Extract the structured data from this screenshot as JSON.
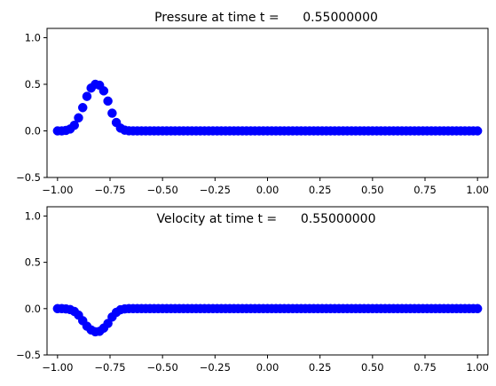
{
  "chart_data": [
    {
      "type": "scatter",
      "title": "Pressure at time t =      0.55000000",
      "xlabel": "",
      "ylabel": "",
      "xlim": [
        -1.05,
        1.05
      ],
      "ylim": [
        -0.5,
        1.1
      ],
      "xticks": [
        -1.0,
        -0.75,
        -0.5,
        -0.25,
        0.0,
        0.25,
        0.5,
        0.75,
        1.0
      ],
      "xtick_labels": [
        "−1.00",
        "−0.75",
        "−0.50",
        "−0.25",
        "0.00",
        "0.25",
        "0.50",
        "0.75",
        "1.00"
      ],
      "yticks": [
        -0.5,
        0.0,
        0.5,
        1.0
      ],
      "ytick_labels": [
        "−0.5",
        "0.0",
        "0.5",
        "1.0"
      ],
      "grid": false,
      "marker_color": "#0000ff",
      "series": [
        {
          "x": [
            -1.0,
            -0.98,
            -0.96,
            -0.94,
            -0.92,
            -0.9,
            -0.88,
            -0.86,
            -0.84,
            -0.82,
            -0.8,
            -0.78,
            -0.76,
            -0.74,
            -0.72,
            -0.7,
            -0.68,
            -0.66,
            -0.64,
            -0.62,
            -0.6,
            -0.58,
            -0.56,
            -0.54,
            -0.52,
            -0.5,
            -0.48,
            -0.46,
            -0.44,
            -0.42,
            -0.4,
            -0.38,
            -0.36,
            -0.34,
            -0.32,
            -0.3,
            -0.28,
            -0.26,
            -0.24,
            -0.22,
            -0.2,
            -0.18,
            -0.16,
            -0.14,
            -0.12,
            -0.1,
            -0.08,
            -0.06,
            -0.04,
            -0.02,
            0.0,
            0.02,
            0.04,
            0.06,
            0.08,
            0.1,
            0.12,
            0.14,
            0.16,
            0.18,
            0.2,
            0.22,
            0.24,
            0.26,
            0.28,
            0.3,
            0.32,
            0.34,
            0.36,
            0.38,
            0.4,
            0.42,
            0.44,
            0.46,
            0.48,
            0.5,
            0.52,
            0.54,
            0.56,
            0.58,
            0.6,
            0.62,
            0.64,
            0.66,
            0.68,
            0.7,
            0.72,
            0.74,
            0.76,
            0.78,
            0.8,
            0.82,
            0.84,
            0.86,
            0.88,
            0.9,
            0.92,
            0.94,
            0.96,
            0.98,
            1.0
          ],
          "y": [
            0.0,
            0.0,
            0.005,
            0.02,
            0.06,
            0.14,
            0.25,
            0.37,
            0.46,
            0.5,
            0.49,
            0.43,
            0.32,
            0.19,
            0.09,
            0.03,
            0.008,
            0.001,
            0.0,
            0.0,
            0.0,
            0.0,
            0.0,
            0.0,
            0.0,
            0.0,
            0.0,
            0.0,
            0.0,
            0.0,
            0.0,
            0.0,
            0.0,
            0.0,
            0.0,
            0.0,
            0.0,
            0.0,
            0.0,
            0.0,
            0.0,
            0.0,
            0.0,
            0.0,
            0.0,
            0.0,
            0.0,
            0.0,
            0.0,
            0.0,
            0.0,
            0.0,
            0.0,
            0.0,
            0.0,
            0.0,
            0.0,
            0.0,
            0.0,
            0.0,
            0.0,
            0.0,
            0.0,
            0.0,
            0.0,
            0.0,
            0.0,
            0.0,
            0.0,
            0.0,
            0.0,
            0.0,
            0.0,
            0.0,
            0.0,
            0.0,
            0.0,
            0.0,
            0.0,
            0.0,
            0.0,
            0.0,
            0.0,
            0.0,
            0.0,
            0.0,
            0.0,
            0.0,
            0.0,
            0.0,
            0.0,
            0.0,
            0.0,
            0.0,
            0.0,
            0.0,
            0.0,
            0.0,
            0.0,
            0.0,
            0.0
          ]
        }
      ]
    },
    {
      "type": "scatter",
      "title": "Velocity at time t =      0.55000000",
      "xlabel": "",
      "ylabel": "",
      "xlim": [
        -1.05,
        1.05
      ],
      "ylim": [
        -0.5,
        1.1
      ],
      "xticks": [
        -1.0,
        -0.75,
        -0.5,
        -0.25,
        0.0,
        0.25,
        0.5,
        0.75,
        1.0
      ],
      "xtick_labels": [
        "−1.00",
        "−0.75",
        "−0.50",
        "−0.25",
        "0.00",
        "0.25",
        "0.50",
        "0.75",
        "1.00"
      ],
      "yticks": [
        -0.5,
        0.0,
        0.5,
        1.0
      ],
      "ytick_labels": [
        "−0.5",
        "0.0",
        "0.5",
        "1.0"
      ],
      "grid": false,
      "marker_color": "#0000ff",
      "series": [
        {
          "x": [
            -1.0,
            -0.98,
            -0.96,
            -0.94,
            -0.92,
            -0.9,
            -0.88,
            -0.86,
            -0.84,
            -0.82,
            -0.8,
            -0.78,
            -0.76,
            -0.74,
            -0.72,
            -0.7,
            -0.68,
            -0.66,
            -0.64,
            -0.62,
            -0.6,
            -0.58,
            -0.56,
            -0.54,
            -0.52,
            -0.5,
            -0.48,
            -0.46,
            -0.44,
            -0.42,
            -0.4,
            -0.38,
            -0.36,
            -0.34,
            -0.32,
            -0.3,
            -0.28,
            -0.26,
            -0.24,
            -0.22,
            -0.2,
            -0.18,
            -0.16,
            -0.14,
            -0.12,
            -0.1,
            -0.08,
            -0.06,
            -0.04,
            -0.02,
            0.0,
            0.02,
            0.04,
            0.06,
            0.08,
            0.1,
            0.12,
            0.14,
            0.16,
            0.18,
            0.2,
            0.22,
            0.24,
            0.26,
            0.28,
            0.3,
            0.32,
            0.34,
            0.36,
            0.38,
            0.4,
            0.42,
            0.44,
            0.46,
            0.48,
            0.5,
            0.52,
            0.54,
            0.56,
            0.58,
            0.6,
            0.62,
            0.64,
            0.66,
            0.68,
            0.7,
            0.72,
            0.74,
            0.76,
            0.78,
            0.8,
            0.82,
            0.84,
            0.86,
            0.88,
            0.9,
            0.92,
            0.94,
            0.96,
            0.98,
            1.0
          ],
          "y": [
            0.0,
            0.0,
            -0.003,
            -0.01,
            -0.03,
            -0.07,
            -0.13,
            -0.19,
            -0.23,
            -0.25,
            -0.245,
            -0.21,
            -0.16,
            -0.09,
            -0.04,
            -0.012,
            -0.003,
            0.0,
            0.0,
            0.0,
            0.0,
            0.0,
            0.0,
            0.0,
            0.0,
            0.0,
            0.0,
            0.0,
            0.0,
            0.0,
            0.0,
            0.0,
            0.0,
            0.0,
            0.0,
            0.0,
            0.0,
            0.0,
            0.0,
            0.0,
            0.0,
            0.0,
            0.0,
            0.0,
            0.0,
            0.0,
            0.0,
            0.0,
            0.0,
            0.0,
            0.0,
            0.0,
            0.0,
            0.0,
            0.0,
            0.0,
            0.0,
            0.0,
            0.0,
            0.0,
            0.0,
            0.0,
            0.0,
            0.0,
            0.0,
            0.0,
            0.0,
            0.0,
            0.0,
            0.0,
            0.0,
            0.0,
            0.0,
            0.0,
            0.0,
            0.0,
            0.0,
            0.0,
            0.0,
            0.0,
            0.0,
            0.0,
            0.0,
            0.0,
            0.0,
            0.0,
            0.0,
            0.0,
            0.0,
            0.0,
            0.0,
            0.0,
            0.0,
            0.0,
            0.0,
            0.0,
            0.0,
            0.0,
            0.0,
            0.0,
            0.0
          ]
        }
      ]
    }
  ]
}
